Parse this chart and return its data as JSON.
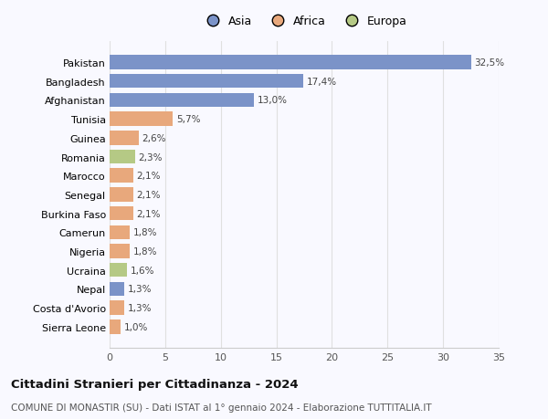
{
  "countries": [
    "Pakistan",
    "Bangladesh",
    "Afghanistan",
    "Tunisia",
    "Guinea",
    "Romania",
    "Marocco",
    "Senegal",
    "Burkina Faso",
    "Camerun",
    "Nigeria",
    "Ucraina",
    "Nepal",
    "Costa d'Avorio",
    "Sierra Leone"
  ],
  "values": [
    32.5,
    17.4,
    13.0,
    5.7,
    2.6,
    2.3,
    2.1,
    2.1,
    2.1,
    1.8,
    1.8,
    1.6,
    1.3,
    1.3,
    1.0
  ],
  "labels": [
    "32,5%",
    "17,4%",
    "13,0%",
    "5,7%",
    "2,6%",
    "2,3%",
    "2,1%",
    "2,1%",
    "2,1%",
    "1,8%",
    "1,8%",
    "1,6%",
    "1,3%",
    "1,3%",
    "1,0%"
  ],
  "continents": [
    "Asia",
    "Asia",
    "Asia",
    "Africa",
    "Africa",
    "Europa",
    "Africa",
    "Africa",
    "Africa",
    "Africa",
    "Africa",
    "Europa",
    "Asia",
    "Africa",
    "Africa"
  ],
  "colors": {
    "Asia": "#7b93c8",
    "Africa": "#e8a87c",
    "Europa": "#b5c985"
  },
  "asia_color": "#7b93c8",
  "title": "Cittadini Stranieri per Cittadinanza - 2024",
  "subtitle": "COMUNE DI MONASTIR (SU) - Dati ISTAT al 1° gennaio 2024 - Elaborazione TUTTITALIA.IT",
  "xlim": [
    0,
    35
  ],
  "xticks": [
    0,
    5,
    10,
    15,
    20,
    25,
    30,
    35
  ],
  "background_color": "#f9f9ff",
  "grid_color": "#e0e0e0",
  "bar_height": 0.75
}
